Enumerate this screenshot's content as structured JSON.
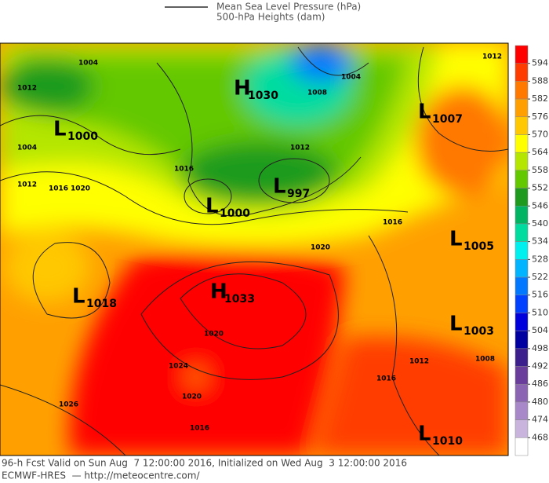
{
  "legend": {
    "line1": "Mean Sea Level Pressure (hPa)",
    "line2": "500-hPa Heights (dam)"
  },
  "colorbar": {
    "labels": [
      "594",
      "588",
      "582",
      "576",
      "570",
      "564",
      "558",
      "552",
      "546",
      "540",
      "534",
      "528",
      "522",
      "516",
      "510",
      "504",
      "498",
      "492",
      "486",
      "480",
      "474",
      "468"
    ],
    "colors": [
      "#ff0000",
      "#ff3c00",
      "#ff7800",
      "#ffa000",
      "#ffc800",
      "#ffff00",
      "#b4e600",
      "#64c800",
      "#1e9b1e",
      "#00b464",
      "#00dca0",
      "#00f0f0",
      "#00b4ff",
      "#0078ff",
      "#0040ff",
      "#0000dc",
      "#0000a0",
      "#3c1e8c",
      "#6a3c9c",
      "#8c64b4",
      "#a888c8",
      "#c8b4dc",
      "#ffffff"
    ]
  },
  "systems": [
    {
      "letter": "L",
      "value": "1000"
    },
    {
      "letter": "H",
      "value": "1030"
    },
    {
      "letter": "L",
      "value": "1007"
    },
    {
      "letter": "L",
      "value": "1000"
    },
    {
      "letter": "L",
      "value": "997"
    },
    {
      "letter": "L",
      "value": "1005"
    },
    {
      "letter": "L",
      "value": "1018"
    },
    {
      "letter": "H",
      "value": "1033"
    },
    {
      "letter": "L",
      "value": "1003"
    },
    {
      "letter": "L",
      "value": "1010"
    }
  ],
  "isobar_labels": [
    "1004",
    "1012",
    "1004",
    "1012",
    "1016",
    "1020",
    "1016",
    "1012",
    "1008",
    "1004",
    "1012",
    "1016",
    "1020",
    "1020",
    "1024",
    "1020",
    "1016",
    "1026",
    "1012",
    "1016",
    "1008"
  ],
  "footer": {
    "line1": "96-h Fcst Valid on Sun Aug  7 12:00:00 2016, Initialized on Wed Aug  3 12:00:00 2016",
    "line2": "ECMWF-HRES  — http://meteocentre.com/"
  }
}
